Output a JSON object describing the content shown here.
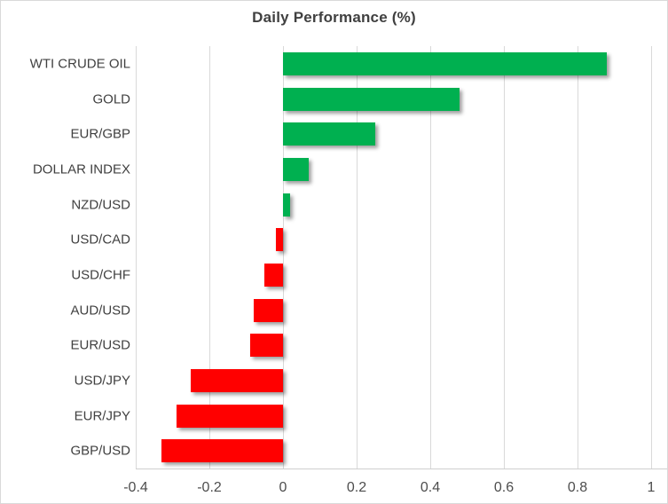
{
  "chart_data": {
    "type": "bar",
    "orientation": "horizontal",
    "title": "Daily Performance (%)",
    "categories": [
      "WTI CRUDE OIL",
      "GOLD",
      "EUR/GBP",
      "DOLLAR INDEX",
      "NZD/USD",
      "USD/CAD",
      "USD/CHF",
      "AUD/USD",
      "EUR/USD",
      "USD/JPY",
      "EUR/JPY",
      "GBP/USD"
    ],
    "values": [
      0.88,
      0.48,
      0.25,
      0.07,
      0.02,
      -0.02,
      -0.05,
      -0.08,
      -0.09,
      -0.25,
      -0.29,
      -0.33
    ],
    "xlabel": "",
    "ylabel": "",
    "xlim": [
      -0.4,
      1.0
    ],
    "xticks": [
      -0.4,
      -0.2,
      0,
      0.2,
      0.4,
      0.6,
      0.8,
      1
    ],
    "xtick_labels": [
      "-0.4",
      "-0.2",
      "0",
      "0.2",
      "0.4",
      "0.6",
      "0.8",
      "1"
    ],
    "grid": true,
    "legend": false,
    "positive_color": "#00B050",
    "negative_color": "#FF0000",
    "gridline_color": "#D9D9D9",
    "axis_line_color": "#CFCFCF",
    "title_color": "#404040",
    "label_color": "#404040",
    "tick_label_color": "#4D4D4D",
    "background_color": "#FFFFFF"
  }
}
